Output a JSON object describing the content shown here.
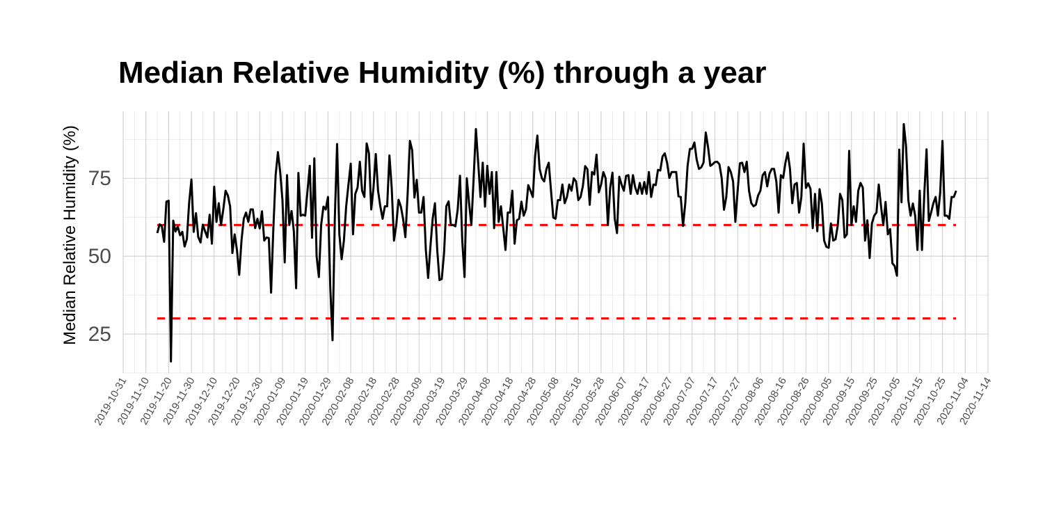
{
  "chart_data": {
    "type": "line",
    "title": "Median Relative Humidity (%) through a year",
    "xlabel": "",
    "ylabel": "Median Relative Humidity (%)",
    "x_tick_labels": [
      "2019-10-31",
      "2019-11-10",
      "2019-11-20",
      "2019-11-30",
      "2019-12-10",
      "2019-12-20",
      "2019-12-30",
      "2020-01-09",
      "2020-01-19",
      "2020-01-29",
      "2020-02-08",
      "2020-02-18",
      "2020-02-28",
      "2020-03-09",
      "2020-03-19",
      "2020-03-29",
      "2020-04-08",
      "2020-04-18",
      "2020-04-28",
      "2020-05-08",
      "2020-05-18",
      "2020-05-28",
      "2020-06-07",
      "2020-06-17",
      "2020-06-27",
      "2020-07-07",
      "2020-07-17",
      "2020-07-27",
      "2020-08-06",
      "2020-08-16",
      "2020-08-26",
      "2020-09-05",
      "2020-09-15",
      "2020-09-25",
      "2020-10-05",
      "2020-10-15",
      "2020-10-25",
      "2020-11-04",
      "2020-11-14"
    ],
    "y_ticks": [
      25,
      50,
      75
    ],
    "xlim": [
      "2019-10-31",
      "2020-11-14"
    ],
    "ylim": [
      12.5,
      96.5
    ],
    "grid": true,
    "reference_lines": [
      {
        "y": 60,
        "color": "#ff0000",
        "style": "dashed"
      },
      {
        "y": 30,
        "color": "#ff0000",
        "style": "dashed"
      }
    ],
    "line_color": "#000000",
    "series": [
      {
        "start_date": "2019-11-15",
        "values": [
          57.4,
          60.2,
          59.6,
          54.6,
          67.5,
          67.8,
          16.2,
          61.4,
          57.9,
          59.5,
          56.7,
          57.8,
          53.1,
          55.5,
          67.2,
          74.6,
          57.8,
          63.8,
          56.1,
          54.4,
          60.1,
          58.0,
          56.0,
          63.3,
          54.0,
          72.3,
          61.0,
          67.0,
          60.0,
          65.0,
          71.0,
          69.5,
          66.0,
          51.0,
          57.0,
          52.0,
          44.0,
          55.0,
          62.0,
          64.0,
          61.0,
          65.0,
          65.0,
          59.0,
          62.0,
          58.9,
          64.4,
          55.0,
          56.0,
          55.8,
          38.3,
          59.0,
          76.0,
          83.4,
          77.0,
          68.0,
          48.0,
          76.0,
          60.0,
          64.5,
          58.0,
          39.7,
          76.7,
          63.0,
          63.3,
          63.0,
          71.0,
          79.0,
          55.9,
          81.4,
          50.0,
          43.3,
          60.0,
          65.9,
          65.0,
          69.0,
          40.0,
          23.0,
          62.0,
          86.0,
          57.0,
          49.0,
          55.0,
          66.0,
          73.0,
          79.7,
          57.0,
          70.0,
          72.0,
          80.3,
          71.0,
          69.0,
          86.2,
          83.0,
          65.0,
          72.0,
          82.8,
          71.0,
          66.0,
          62.0,
          66.0,
          66.0,
          82.3,
          72.0,
          55.0,
          60.0,
          68.1,
          66.0,
          62.0,
          56.1,
          70.0,
          87.0,
          84.0,
          68.8,
          74.5,
          64.0,
          64.0,
          69.0,
          52.0,
          43.0,
          53.0,
          62.0,
          67.0,
          52.0,
          42.3,
          42.7,
          51.0,
          66.0,
          67.6,
          60.0,
          60.0,
          59.6,
          65.0,
          75.8,
          55.0,
          43.3,
          75.0,
          67.0,
          60.0,
          75.0,
          90.8,
          80.0,
          69.0,
          80.0,
          65.9,
          79.0,
          70.0,
          77.0,
          59.0,
          77.0,
          61.0,
          66.0,
          59.0,
          52.0,
          64.0,
          64.0,
          71.0,
          54.0,
          61.5,
          62.0,
          67.5,
          63.0,
          65.0,
          72.8,
          71.0,
          69.0,
          82.0,
          88.7,
          78.0,
          75.0,
          74.0,
          78.0,
          80.0,
          71.0,
          62.4,
          62.0,
          68.0,
          68.0,
          73.0,
          67.0,
          69.0,
          73.0,
          71.0,
          75.0,
          74.0,
          68.0,
          69.0,
          72.5,
          78.9,
          77.9,
          66.5,
          77.0,
          76.2,
          82.6,
          70.5,
          73.0,
          77.0,
          75.0,
          60.0,
          72.0,
          76.8,
          62.0,
          57.4,
          75.5,
          73.0,
          71.0,
          75.8,
          76.0,
          70.0,
          76.0,
          72.0,
          70.0,
          73.5,
          70.0,
          73.8,
          70.0,
          77.0,
          69.0,
          73.0,
          72.8,
          77.7,
          77.5,
          82.0,
          83.0,
          80.0,
          75.1,
          77.0,
          77.0,
          77.0,
          69.2,
          69.0,
          59.7,
          67.0,
          79.0,
          84.4,
          84.5,
          86.5,
          81.0,
          78.0,
          78.5,
          80.0,
          89.7,
          85.0,
          79.0,
          79.5,
          80.2,
          80.3,
          79.5,
          75.0,
          64.9,
          69.0,
          78.6,
          77.0,
          74.0,
          61.0,
          71.0,
          79.8,
          80.0,
          77.0,
          80.3,
          71.0,
          67.0,
          66.0,
          66.5,
          69.5,
          71.0,
          76.0,
          77.0,
          72.4,
          76.5,
          78.0,
          78.0,
          74.0,
          64.0,
          76.0,
          75.1,
          80.0,
          83.3,
          78.0,
          67.0,
          73.0,
          73.5,
          64.0,
          69.0,
          86.1,
          71.9,
          73.4,
          71.6,
          59.0,
          70.0,
          58.0,
          71.5,
          67.0,
          55.0,
          53.0,
          52.7,
          60.5,
          55.0,
          55.4,
          59.9,
          70.0,
          68.0,
          56.0,
          57.0,
          83.8,
          60.0,
          66.0,
          61.0,
          71.0,
          73.5,
          72.0,
          55.0,
          61.5,
          49.4,
          60.5,
          63.0,
          64.0,
          73.0,
          66.0,
          60.0,
          67.4,
          57.0,
          58.7,
          47.7,
          46.8,
          43.7,
          84.2,
          67.3,
          92.4,
          85.3,
          68.0,
          63.0,
          66.9,
          63.0,
          52.0,
          71.0,
          52.0,
          69.6,
          84.3,
          61.3,
          64.0,
          67.0,
          69.0,
          63.0,
          70.4,
          87.0,
          63.0,
          63.0,
          62.0,
          69.0,
          69.0,
          71.0
        ]
      }
    ]
  }
}
